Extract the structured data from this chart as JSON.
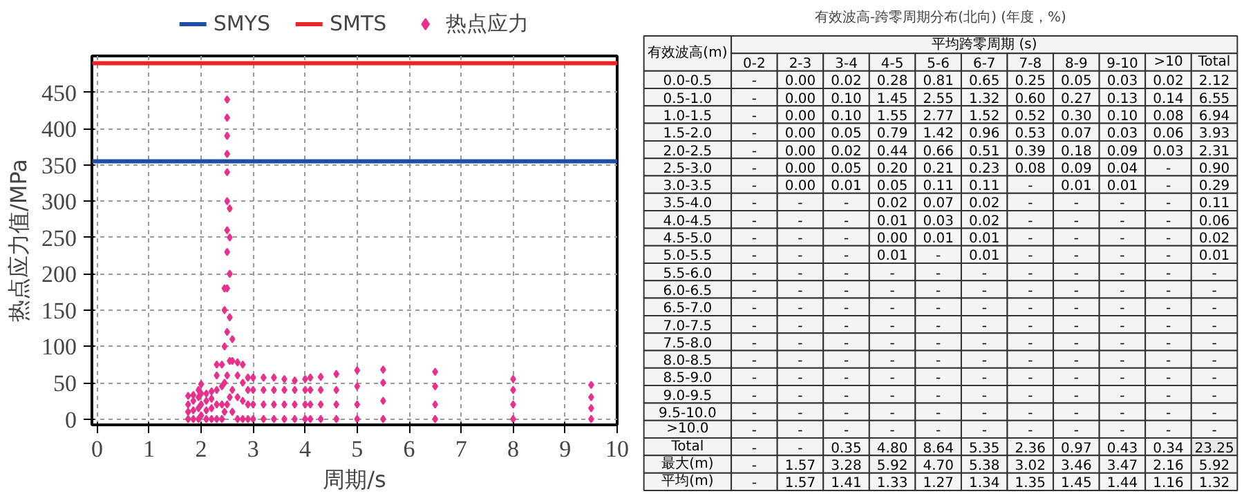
{
  "chart_data": [
    {
      "type": "scatter",
      "xlabel": "周期/s",
      "ylabel": "热点应力值/MPa",
      "xlim": [
        -0.1,
        10
      ],
      "ylim": [
        -8,
        500
      ],
      "xticks": [
        0,
        1,
        2,
        3,
        4,
        5,
        6,
        7,
        8,
        9,
        10
      ],
      "yticks": [
        0,
        50,
        100,
        150,
        200,
        250,
        300,
        350,
        400,
        450
      ],
      "grid": true,
      "legend": "top",
      "series": [
        {
          "name": "SMYS",
          "type": "line",
          "color": "#1f4ea3",
          "x": [
            -0.1,
            10
          ],
          "values": [
            355,
            355
          ],
          "marker": "none",
          "line_style": "solid"
        },
        {
          "name": "SMTS",
          "type": "line",
          "color": "#e8262a",
          "x": [
            -0.1,
            10
          ],
          "values": [
            490,
            490
          ],
          "marker": "none",
          "line_style": "solid"
        },
        {
          "name": "热点应力",
          "type": "scatter",
          "color": "#e8308c",
          "marker": "diamond",
          "x": [
            1.75,
            1.75,
            1.75,
            1.75,
            1.85,
            1.85,
            1.85,
            1.85,
            1.95,
            1.95,
            1.95,
            1.95,
            2.0,
            2.0,
            2.0,
            2.0,
            2.1,
            2.1,
            2.1,
            2.1,
            2.2,
            2.2,
            2.2,
            2.2,
            2.3,
            2.3,
            2.3,
            2.3,
            2.3,
            2.4,
            2.4,
            2.4,
            2.4,
            2.45,
            2.45,
            2.45,
            2.45,
            2.45,
            2.5,
            2.5,
            2.5,
            2.5,
            2.5,
            2.5,
            2.5,
            2.5,
            2.5,
            2.5,
            2.5,
            2.5,
            2.55,
            2.55,
            2.55,
            2.55,
            2.55,
            2.55,
            2.6,
            2.6,
            2.6,
            2.6,
            2.7,
            2.7,
            2.7,
            2.7,
            2.8,
            2.8,
            2.8,
            2.8,
            2.9,
            2.9,
            2.9,
            2.9,
            3.0,
            3.0,
            3.0,
            3.0,
            3.2,
            3.2,
            3.2,
            3.2,
            3.4,
            3.4,
            3.4,
            3.4,
            3.6,
            3.6,
            3.6,
            3.6,
            3.8,
            3.8,
            3.8,
            3.8,
            4.0,
            4.0,
            4.0,
            4.0,
            4.1,
            4.1,
            4.1,
            4.1,
            4.3,
            4.3,
            4.3,
            4.3,
            4.6,
            4.6,
            4.6,
            4.6,
            5.0,
            5.0,
            5.0,
            5.0,
            5.5,
            5.5,
            5.5,
            5.5,
            6.5,
            6.5,
            6.5,
            6.5,
            8.0,
            8.0,
            8.0,
            8.0,
            9.5,
            9.5,
            9.5,
            9.5
          ],
          "values": [
            0,
            10,
            20,
            32,
            0,
            12,
            25,
            33,
            0,
            15,
            30,
            40,
            5,
            20,
            35,
            48,
            0,
            12,
            25,
            35,
            0,
            15,
            28,
            38,
            0,
            20,
            40,
            60,
            75,
            0,
            20,
            45,
            75,
            10,
            50,
            100,
            150,
            180,
            20,
            60,
            120,
            180,
            230,
            260,
            300,
            340,
            365,
            390,
            415,
            440,
            30,
            80,
            140,
            200,
            250,
            290,
            10,
            40,
            80,
            110,
            0,
            30,
            60,
            78,
            0,
            25,
            50,
            75,
            0,
            20,
            40,
            57,
            0,
            20,
            40,
            57,
            0,
            20,
            40,
            57,
            0,
            20,
            40,
            57,
            0,
            20,
            40,
            55,
            0,
            20,
            40,
            53,
            0,
            20,
            40,
            55,
            0,
            20,
            40,
            57,
            0,
            20,
            40,
            58,
            0,
            20,
            40,
            62,
            0,
            20,
            45,
            67,
            0,
            25,
            50,
            68,
            0,
            20,
            45,
            65,
            0,
            20,
            40,
            55,
            0,
            15,
            30,
            47
          ]
        }
      ]
    },
    {
      "type": "heatmap",
      "title": "有效波高-跨零周期分布(北向) (年度，%)",
      "xlabel": "平均跨零周期 (s)",
      "ylabel": "有效波高(m)",
      "categories": [
        "0-2",
        "2-3",
        "3-4",
        "4-5",
        "5-6",
        "6-7",
        "7-8",
        "8-9",
        "9-10",
        ">10",
        "Total"
      ],
      "y_categories": [
        "0.0-0.5",
        "0.5-1.0",
        "1.0-1.5",
        "1.5-2.0",
        "2.0-2.5",
        "2.5-3.0",
        "3.0-3.5",
        "3.5-4.0",
        "4.0-4.5",
        "4.5-5.0",
        "5.0-5.5",
        "5.5-6.0",
        "6.0-6.5",
        "6.5-7.0",
        "7.0-7.5",
        "7.5-8.0",
        "8.0-8.5",
        "8.5-9.0",
        "9.0-9.5",
        "9.5-10.0",
        ">10.0",
        "Total",
        "最大(m)",
        "平均(m)"
      ],
      "cells": [
        [
          null,
          0,
          0.02,
          0.28,
          0.81,
          0.65,
          0.25,
          0.05,
          0.03,
          0.02,
          2.12
        ],
        [
          null,
          0,
          0.1,
          1.45,
          2.55,
          1.32,
          0.6,
          0.27,
          0.13,
          0.14,
          6.55
        ],
        [
          null,
          0,
          0.1,
          1.55,
          2.77,
          1.52,
          0.52,
          0.3,
          0.1,
          0.08,
          6.94
        ],
        [
          null,
          0,
          0.05,
          0.79,
          1.42,
          0.96,
          0.53,
          0.07,
          0.03,
          0.06,
          3.93
        ],
        [
          null,
          0,
          0.02,
          0.44,
          0.66,
          0.51,
          0.39,
          0.18,
          0.09,
          0.03,
          2.31
        ],
        [
          null,
          0,
          0.05,
          0.2,
          0.21,
          0.23,
          0.08,
          0.09,
          0.04,
          null,
          0.9
        ],
        [
          null,
          0,
          0.01,
          0.05,
          0.11,
          0.11,
          null,
          0.01,
          0.01,
          null,
          0.29
        ],
        [
          null,
          null,
          null,
          0.02,
          0.07,
          0.02,
          null,
          null,
          null,
          null,
          0.11
        ],
        [
          null,
          null,
          null,
          0.01,
          0.03,
          0.02,
          null,
          null,
          null,
          null,
          0.06
        ],
        [
          null,
          null,
          null,
          0,
          0.01,
          0.01,
          null,
          null,
          null,
          null,
          0.02
        ],
        [
          null,
          null,
          null,
          0.01,
          null,
          0.01,
          null,
          null,
          null,
          null,
          0.01
        ],
        [
          null,
          null,
          null,
          null,
          null,
          null,
          null,
          null,
          null,
          null,
          null
        ],
        [
          null,
          null,
          null,
          null,
          null,
          null,
          null,
          null,
          null,
          null,
          null
        ],
        [
          null,
          null,
          null,
          null,
          null,
          null,
          null,
          null,
          null,
          null,
          null
        ],
        [
          null,
          null,
          null,
          null,
          null,
          null,
          null,
          null,
          null,
          null,
          null
        ],
        [
          null,
          null,
          null,
          null,
          null,
          null,
          null,
          null,
          null,
          null,
          null
        ],
        [
          null,
          null,
          null,
          null,
          null,
          null,
          null,
          null,
          null,
          null,
          null
        ],
        [
          null,
          null,
          null,
          null,
          null,
          null,
          null,
          null,
          null,
          null,
          null
        ],
        [
          null,
          null,
          null,
          null,
          null,
          null,
          null,
          null,
          null,
          null,
          null
        ],
        [
          null,
          null,
          null,
          null,
          null,
          null,
          null,
          null,
          null,
          null,
          null
        ],
        [
          null,
          null,
          null,
          null,
          null,
          null,
          null,
          null,
          null,
          null,
          null
        ],
        [
          null,
          null,
          0.35,
          4.8,
          8.64,
          5.35,
          2.36,
          0.97,
          0.43,
          0.34,
          23.25
        ],
        [
          null,
          1.57,
          3.28,
          5.92,
          4.7,
          5.38,
          3.02,
          3.46,
          3.47,
          2.16,
          5.92
        ],
        [
          null,
          1.57,
          1.41,
          1.33,
          1.27,
          1.34,
          1.35,
          1.45,
          1.44,
          1.16,
          1.32
        ]
      ],
      "cell_labels": [
        [
          "-",
          "0.00",
          "0.02",
          "0.28",
          "0.81",
          "0.65",
          "0.25",
          "0.05",
          "0.03",
          "0.02",
          "2.12"
        ],
        [
          "-",
          "0.00",
          "0.10",
          "1.45",
          "2.55",
          "1.32",
          "0.60",
          "0.27",
          "0.13",
          "0.14",
          "6.55"
        ],
        [
          "-",
          "0.00",
          "0.10",
          "1.55",
          "2.77",
          "1.52",
          "0.52",
          "0.30",
          "0.10",
          "0.08",
          "6.94"
        ],
        [
          "-",
          "0.00",
          "0.05",
          "0.79",
          "1.42",
          "0.96",
          "0.53",
          "0.07",
          "0.03",
          "0.06",
          "3.93"
        ],
        [
          "-",
          "0.00",
          "0.02",
          "0.44",
          "0.66",
          "0.51",
          "0.39",
          "0.18",
          "0.09",
          "0.03",
          "2.31"
        ],
        [
          "-",
          "0.00",
          "0.05",
          "0.20",
          "0.21",
          "0.23",
          "0.08",
          "0.09",
          "0.04",
          "-",
          "0.90"
        ],
        [
          "-",
          "0.00",
          "0.01",
          "0.05",
          "0.11",
          "0.11",
          "-",
          "0.01",
          "0.01",
          "-",
          "0.29"
        ],
        [
          "-",
          "-",
          "-",
          "0.02",
          "0.07",
          "0.02",
          "-",
          "-",
          "-",
          "-",
          "0.11"
        ],
        [
          "-",
          "-",
          "-",
          "0.01",
          "0.03",
          "0.02",
          "-",
          "-",
          "-",
          "-",
          "0.06"
        ],
        [
          "-",
          "-",
          "-",
          "0.00",
          "0.01",
          "0.01",
          "-",
          "-",
          "-",
          "-",
          "0.02"
        ],
        [
          "-",
          "-",
          "-",
          "0.01",
          "-",
          "0.01",
          "-",
          "-",
          "-",
          "-",
          "0.01"
        ],
        [
          "-",
          "-",
          "-",
          "-",
          "-",
          "-",
          "-",
          "-",
          "-",
          "-",
          "-"
        ],
        [
          "-",
          "-",
          "-",
          "-",
          "-",
          "-",
          "-",
          "-",
          "-",
          "-",
          "-"
        ],
        [
          "-",
          "-",
          "-",
          "-",
          "-",
          "-",
          "-",
          "-",
          "-",
          "-",
          "-"
        ],
        [
          "-",
          "-",
          "-",
          "-",
          "-",
          "-",
          "-",
          "-",
          "-",
          "-",
          "-"
        ],
        [
          "-",
          "-",
          "-",
          "-",
          "-",
          "-",
          "-",
          "-",
          "-",
          "-",
          "-"
        ],
        [
          "-",
          "-",
          "-",
          "-",
          "-",
          "-",
          "-",
          "-",
          "-",
          "-",
          "-"
        ],
        [
          "-",
          "-",
          "-",
          "-",
          "-",
          "-",
          "-",
          "-",
          "-",
          "-",
          "-"
        ],
        [
          "-",
          "-",
          "-",
          "-",
          "-",
          "-",
          "-",
          "-",
          "-",
          "-",
          "-"
        ],
        [
          "-",
          "-",
          "-",
          "-",
          "-",
          "-",
          "-",
          "-",
          "-",
          "-",
          "-"
        ],
        [
          "-",
          "-",
          "-",
          "-",
          "-",
          "-",
          "-",
          "-",
          "-",
          "-",
          "-"
        ],
        [
          "-",
          "-",
          "0.35",
          "4.80",
          "8.64",
          "5.35",
          "2.36",
          "0.97",
          "0.43",
          "0.34",
          "23.25"
        ],
        [
          "-",
          "1.57",
          "3.28",
          "5.92",
          "4.70",
          "5.38",
          "3.02",
          "3.46",
          "3.47",
          "2.16",
          "5.92"
        ],
        [
          "-",
          "1.57",
          "1.41",
          "1.33",
          "1.27",
          "1.34",
          "1.35",
          "1.45",
          "1.44",
          "1.16",
          "1.32"
        ]
      ]
    }
  ]
}
